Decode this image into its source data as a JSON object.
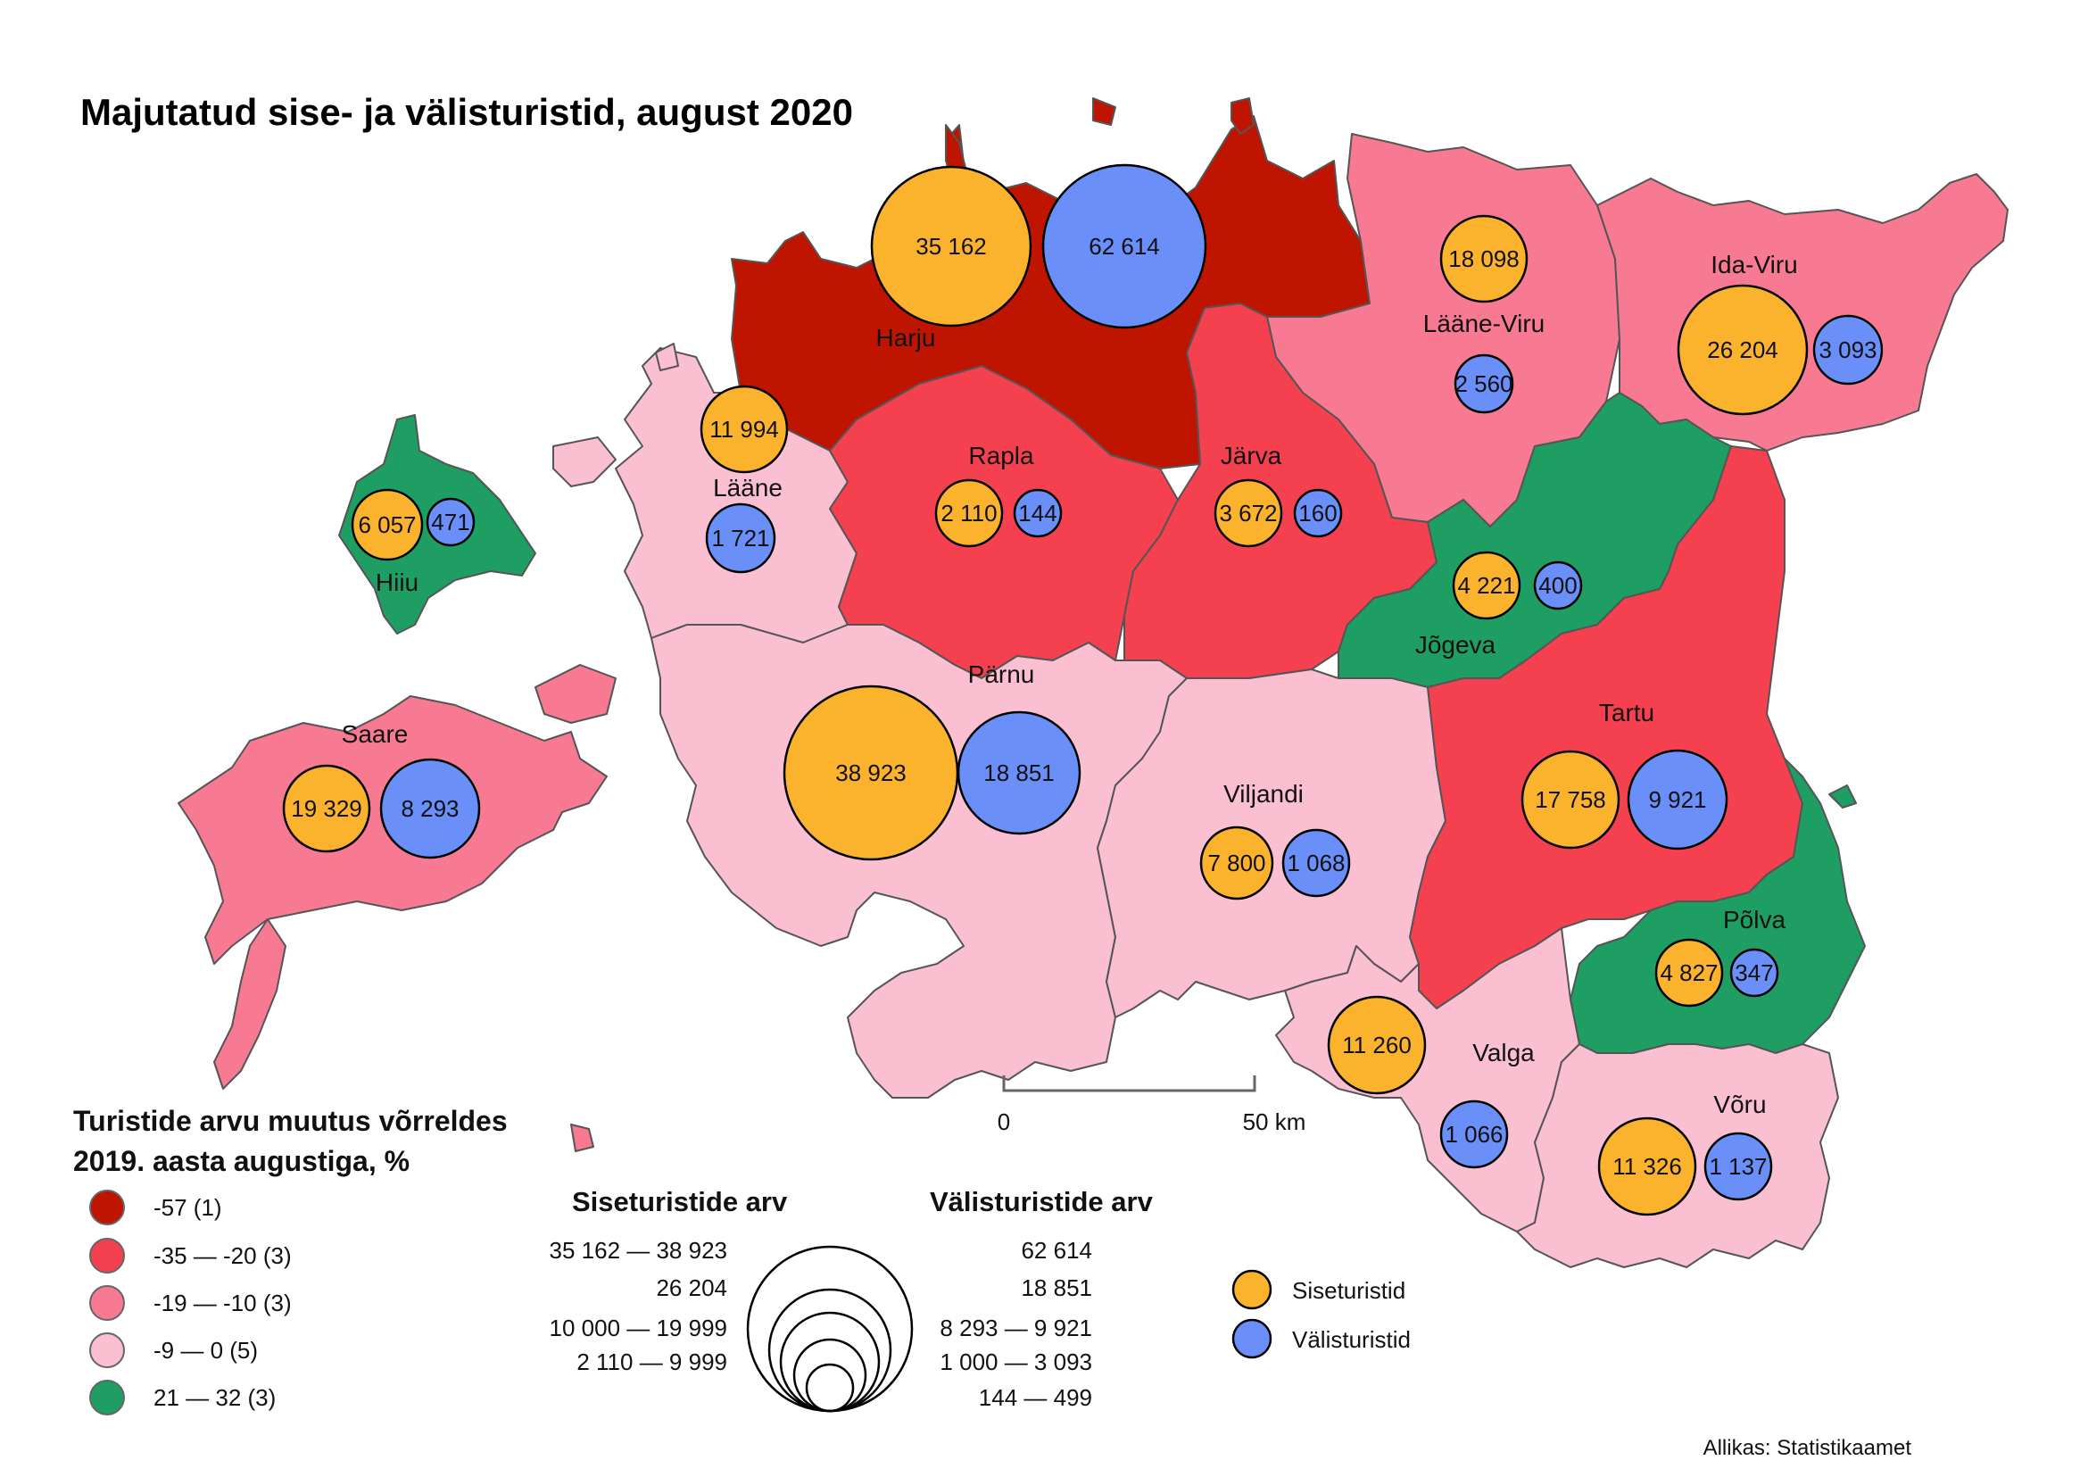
{
  "title": "Majutatud sise- ja välisturistid, august 2020",
  "colors": {
    "dark_red": "#be1400",
    "red": "#f4404f",
    "pink": "#f77a92",
    "light_pink": "#fbbfd2",
    "green": "#1e9e63",
    "domestic": "#fbb22d",
    "foreign": "#6a8ff9"
  },
  "regions": [
    {
      "key": "harju",
      "label": "Harju",
      "siseturistid": "35 162",
      "valisturistid": "62 614",
      "class": "dark_red"
    },
    {
      "key": "laane-viru",
      "label": "Lääne-Viru",
      "siseturistid": "18 098",
      "valisturistid": "2 560",
      "class": "pink"
    },
    {
      "key": "ida-viru",
      "label": "Ida-Viru",
      "siseturistid": "26 204",
      "valisturistid": "3 093",
      "class": "pink"
    },
    {
      "key": "laane",
      "label": "Lääne",
      "siseturistid": "11 994",
      "valisturistid": "1 721",
      "class": "light_pink"
    },
    {
      "key": "hiiu",
      "label": "Hiiu",
      "siseturistid": "6 057",
      "valisturistid": "471",
      "class": "green"
    },
    {
      "key": "rapla",
      "label": "Rapla",
      "siseturistid": "2 110",
      "valisturistid": "144",
      "class": "red"
    },
    {
      "key": "jarva",
      "label": "Järva",
      "siseturistid": "3 672",
      "valisturistid": "160",
      "class": "red"
    },
    {
      "key": "jogeva",
      "label": "Jõgeva",
      "siseturistid": "4 221",
      "valisturistid": "400",
      "class": "green"
    },
    {
      "key": "saare",
      "label": "Saare",
      "siseturistid": "19 329",
      "valisturistid": "8 293",
      "class": "pink"
    },
    {
      "key": "parnu",
      "label": "Pärnu",
      "siseturistid": "38 923",
      "valisturistid": "18 851",
      "class": "light_pink"
    },
    {
      "key": "viljandi",
      "label": "Viljandi",
      "siseturistid": "7 800",
      "valisturistid": "1 068",
      "class": "light_pink"
    },
    {
      "key": "tartu",
      "label": "Tartu",
      "siseturistid": "17 758",
      "valisturistid": "9 921",
      "class": "red"
    },
    {
      "key": "polva",
      "label": "Põlva",
      "siseturistid": "4 827",
      "valisturistid": "347",
      "class": "green"
    },
    {
      "key": "valga",
      "label": "Valga",
      "siseturistid": "11 260",
      "valisturistid": "1 066",
      "class": "light_pink"
    },
    {
      "key": "voru",
      "label": "Võru",
      "siseturistid": "11 326",
      "valisturistid": "1 137",
      "class": "light_pink"
    }
  ],
  "change_legend": {
    "title_line1": "Turistide arvu muutus võrreldes",
    "title_line2": "2019. aasta augustiga, %",
    "items": [
      {
        "label": "-57 (1)",
        "class": "dark_red"
      },
      {
        "label": "-35 — -20 (3)",
        "class": "red"
      },
      {
        "label": "-19 — -10 (3)",
        "class": "pink"
      },
      {
        "label": "-9 — 0 (5)",
        "class": "light_pink"
      },
      {
        "label": "21 — 32 (3)",
        "class": "green"
      }
    ]
  },
  "size_legend": {
    "domestic_title": "Siseturistide arv",
    "foreign_title": "Välisturistide arv",
    "domestic_ranges": [
      "35 162 — 38 923",
      "26 204",
      "10 000 — 19 999",
      "2 110 — 9 999"
    ],
    "foreign_ranges": [
      "62 614",
      "18 851",
      "8 293 — 9 921",
      "1 000 — 3 093",
      "144 — 499"
    ]
  },
  "type_legend": {
    "domestic": "Siseturistid",
    "foreign": "Välisturistid"
  },
  "scale_bar": {
    "start": "0",
    "end": "50 km"
  },
  "source": "Allikas: Statistikaamet"
}
